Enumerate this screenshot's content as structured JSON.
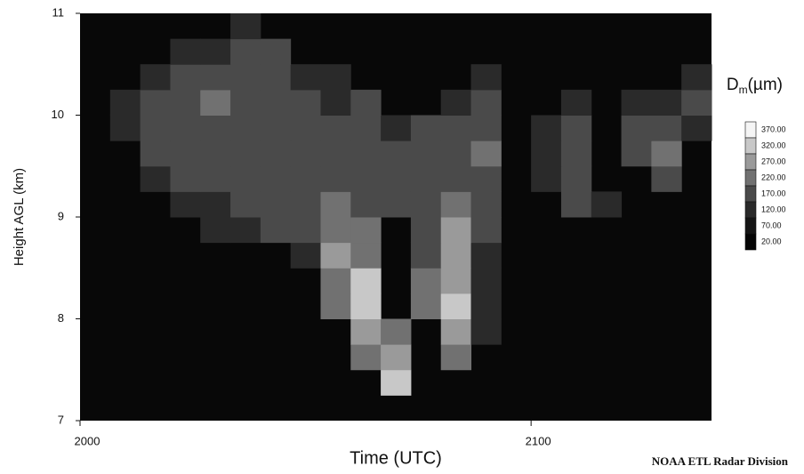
{
  "chart_data": {
    "type": "heatmap",
    "xlabel": "Time (UTC)",
    "ylabel": "Height AGL (km)",
    "xlim": [
      0,
      84
    ],
    "xticks": [
      {
        "value": 0,
        "label": "2000"
      },
      {
        "value": 60,
        "label": "2100"
      }
    ],
    "ylim": [
      7,
      11
    ],
    "yticks": [
      7,
      8,
      9,
      10,
      11
    ],
    "x": [
      2,
      6,
      10,
      14,
      18,
      22,
      26,
      30,
      34,
      38,
      42,
      46,
      50,
      54,
      58,
      62,
      66,
      70,
      74,
      78,
      82
    ],
    "y": [
      7.125,
      7.375,
      7.625,
      7.875,
      8.125,
      8.375,
      8.625,
      8.875,
      9.125,
      9.375,
      9.625,
      9.875,
      10.125,
      10.375,
      10.625,
      10.875
    ],
    "z": [
      [
        null,
        null,
        null,
        null,
        null,
        null,
        null,
        null,
        null,
        null,
        null,
        null,
        null,
        null,
        null,
        null,
        null,
        null,
        null,
        null,
        null
      ],
      [
        null,
        null,
        null,
        null,
        null,
        null,
        null,
        null,
        null,
        null,
        350,
        null,
        null,
        null,
        null,
        null,
        null,
        null,
        null,
        null,
        null
      ],
      [
        null,
        null,
        null,
        null,
        null,
        null,
        null,
        null,
        null,
        260,
        300,
        null,
        260,
        null,
        null,
        null,
        null,
        null,
        null,
        null,
        null
      ],
      [
        null,
        null,
        null,
        null,
        null,
        null,
        null,
        null,
        null,
        300,
        250,
        null,
        300,
        150,
        null,
        null,
        null,
        null,
        null,
        null,
        null
      ],
      [
        null,
        null,
        null,
        null,
        null,
        null,
        null,
        null,
        220,
        330,
        null,
        240,
        320,
        150,
        null,
        null,
        null,
        null,
        null,
        null,
        null
      ],
      [
        null,
        null,
        null,
        null,
        null,
        null,
        null,
        null,
        260,
        320,
        null,
        220,
        310,
        150,
        null,
        null,
        null,
        null,
        null,
        null,
        null
      ],
      [
        null,
        null,
        null,
        null,
        null,
        null,
        null,
        150,
        280,
        260,
        null,
        200,
        300,
        160,
        null,
        null,
        null,
        null,
        null,
        null,
        null
      ],
      [
        null,
        null,
        null,
        null,
        150,
        150,
        170,
        180,
        260,
        240,
        null,
        180,
        270,
        170,
        null,
        null,
        null,
        null,
        null,
        null,
        null
      ],
      [
        null,
        null,
        null,
        150,
        160,
        170,
        180,
        200,
        230,
        200,
        170,
        190,
        240,
        180,
        null,
        null,
        170,
        160,
        null,
        null,
        null
      ],
      [
        null,
        null,
        150,
        170,
        180,
        180,
        190,
        200,
        190,
        190,
        180,
        170,
        200,
        200,
        null,
        150,
        200,
        null,
        null,
        170,
        null
      ],
      [
        null,
        null,
        170,
        180,
        190,
        200,
        200,
        200,
        180,
        180,
        170,
        180,
        190,
        220,
        null,
        150,
        200,
        null,
        170,
        220,
        null
      ],
      [
        null,
        150,
        180,
        200,
        200,
        190,
        200,
        180,
        170,
        180,
        160,
        170,
        170,
        200,
        null,
        150,
        180,
        null,
        170,
        200,
        160
      ],
      [
        null,
        150,
        170,
        200,
        220,
        200,
        180,
        170,
        160,
        170,
        null,
        null,
        160,
        200,
        null,
        null,
        160,
        null,
        160,
        150,
        170
      ],
      [
        null,
        null,
        150,
        170,
        180,
        200,
        170,
        150,
        150,
        null,
        null,
        null,
        null,
        150,
        null,
        null,
        null,
        null,
        null,
        null,
        150
      ],
      [
        null,
        null,
        null,
        150,
        150,
        170,
        170,
        null,
        null,
        null,
        null,
        null,
        null,
        null,
        null,
        null,
        null,
        null,
        null,
        null,
        null
      ],
      [
        null,
        null,
        null,
        null,
        null,
        150,
        null,
        null,
        null,
        null,
        null,
        null,
        null,
        null,
        null,
        null,
        null,
        null,
        null,
        null,
        null
      ]
    ],
    "background": "#080808",
    "colorbar_title": {
      "main": "D",
      "sub": "m",
      "rest": "(µm)"
    },
    "levels": [
      {
        "value": 370,
        "label": "370.00",
        "color": "#f5f5f5"
      },
      {
        "value": 320,
        "label": "320.00",
        "color": "#c8c8c8"
      },
      {
        "value": 270,
        "label": "270.00",
        "color": "#9a9a9a"
      },
      {
        "value": 220,
        "label": "220.00",
        "color": "#717171"
      },
      {
        "value": 170,
        "label": "170.00",
        "color": "#4a4a4a"
      },
      {
        "value": 120,
        "label": "120.00",
        "color": "#2a2a2a"
      },
      {
        "value": 70,
        "label": "70.00",
        "color": "#151515"
      },
      {
        "value": 20,
        "label": "20.00",
        "color": "#050505"
      }
    ],
    "footer": "NOAA ETL Radar Division"
  }
}
